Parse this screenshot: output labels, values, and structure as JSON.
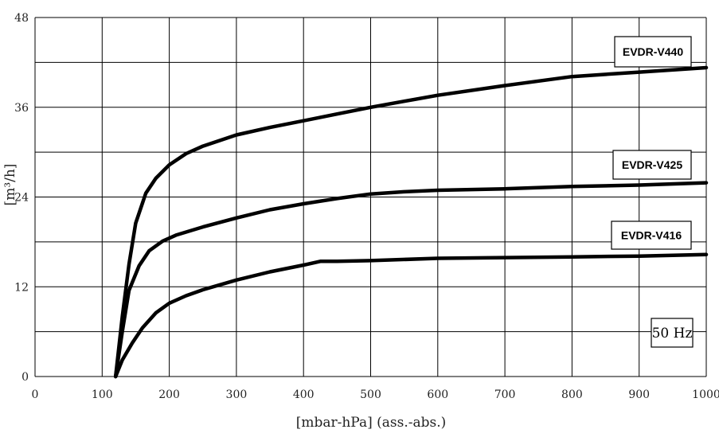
{
  "chart_data": {
    "type": "line",
    "xlabel": "[mbar-hPa] (ass.-abs.)",
    "ylabel": "[m³/h]",
    "xlim": [
      0,
      1000
    ],
    "ylim": [
      0,
      48
    ],
    "x_ticks": [
      0,
      100,
      200,
      300,
      400,
      500,
      600,
      700,
      800,
      900,
      1000
    ],
    "y_ticks": [
      0,
      12,
      24,
      36,
      48
    ],
    "y_grid": [
      0,
      6,
      12,
      18,
      24,
      30,
      36,
      42,
      48
    ],
    "grid": true,
    "annotation": "50 Hz",
    "line_color": "#000000",
    "series": [
      {
        "name": "EVDR-V440",
        "x": [
          120,
          130,
          140,
          150,
          165,
          180,
          200,
          225,
          250,
          300,
          350,
          400,
          450,
          500,
          550,
          600,
          700,
          800,
          900,
          1000
        ],
        "y": [
          0,
          8,
          15,
          20.5,
          24.5,
          26.5,
          28.3,
          29.8,
          30.8,
          32.3,
          33.3,
          34.2,
          35.1,
          36,
          36.8,
          37.6,
          38.9,
          40.1,
          40.7,
          41.3
        ]
      },
      {
        "name": "EVDR-V425",
        "x": [
          120,
          130,
          140,
          155,
          170,
          190,
          210,
          250,
          300,
          350,
          400,
          450,
          500,
          550,
          600,
          700,
          800,
          900,
          1000
        ],
        "y": [
          0,
          6,
          11.5,
          14.8,
          16.8,
          18.1,
          18.9,
          20,
          21.2,
          22.3,
          23.1,
          23.8,
          24.4,
          24.7,
          24.9,
          25.1,
          25.4,
          25.6,
          25.9
        ]
      },
      {
        "name": "EVDR-V416",
        "x": [
          120,
          130,
          145,
          160,
          180,
          200,
          225,
          250,
          300,
          350,
          400,
          425,
          450,
          500,
          600,
          700,
          800,
          900,
          1000
        ],
        "y": [
          0,
          2.2,
          4.5,
          6.5,
          8.5,
          9.8,
          10.8,
          11.6,
          12.9,
          14,
          14.9,
          15.4,
          15.4,
          15.5,
          15.8,
          15.9,
          16,
          16.1,
          16.3
        ]
      }
    ]
  }
}
